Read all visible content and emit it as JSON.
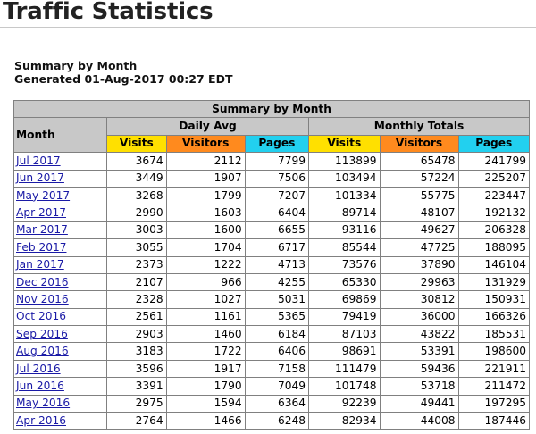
{
  "page_title": "Traffic Statistics",
  "summary": {
    "heading": "Summary by Month",
    "generated": "Generated 01-Aug-2017 00:27 EDT"
  },
  "table": {
    "caption": "Summary by Month",
    "month_header": "Month",
    "daily_avg_header": "Daily Avg",
    "monthly_totals_header": "Monthly Totals",
    "col_visits": "Visits",
    "col_visitors": "Visitors",
    "col_pages": "Pages",
    "rows": [
      {
        "month": "Jul 2017",
        "d_visits": "3674",
        "d_visitors": "2112",
        "d_pages": "7799",
        "m_visits": "113899",
        "m_visitors": "65478",
        "m_pages": "241799"
      },
      {
        "month": "Jun 2017",
        "d_visits": "3449",
        "d_visitors": "1907",
        "d_pages": "7506",
        "m_visits": "103494",
        "m_visitors": "57224",
        "m_pages": "225207"
      },
      {
        "month": "May 2017",
        "d_visits": "3268",
        "d_visitors": "1799",
        "d_pages": "7207",
        "m_visits": "101334",
        "m_visitors": "55775",
        "m_pages": "223447"
      },
      {
        "month": "Apr 2017",
        "d_visits": "2990",
        "d_visitors": "1603",
        "d_pages": "6404",
        "m_visits": "89714",
        "m_visitors": "48107",
        "m_pages": "192132"
      },
      {
        "month": "Mar 2017",
        "d_visits": "3003",
        "d_visitors": "1600",
        "d_pages": "6655",
        "m_visits": "93116",
        "m_visitors": "49627",
        "m_pages": "206328"
      },
      {
        "month": "Feb 2017",
        "d_visits": "3055",
        "d_visitors": "1704",
        "d_pages": "6717",
        "m_visits": "85544",
        "m_visitors": "47725",
        "m_pages": "188095"
      },
      {
        "month": "Jan 2017",
        "d_visits": "2373",
        "d_visitors": "1222",
        "d_pages": "4713",
        "m_visits": "73576",
        "m_visitors": "37890",
        "m_pages": "146104"
      },
      {
        "month": "Dec 2016",
        "d_visits": "2107",
        "d_visitors": "966",
        "d_pages": "4255",
        "m_visits": "65330",
        "m_visitors": "29963",
        "m_pages": "131929"
      },
      {
        "month": "Nov 2016",
        "d_visits": "2328",
        "d_visitors": "1027",
        "d_pages": "5031",
        "m_visits": "69869",
        "m_visitors": "30812",
        "m_pages": "150931"
      },
      {
        "month": "Oct 2016",
        "d_visits": "2561",
        "d_visitors": "1161",
        "d_pages": "5365",
        "m_visits": "79419",
        "m_visitors": "36000",
        "m_pages": "166326"
      },
      {
        "month": "Sep 2016",
        "d_visits": "2903",
        "d_visitors": "1460",
        "d_pages": "6184",
        "m_visits": "87103",
        "m_visitors": "43822",
        "m_pages": "185531"
      },
      {
        "month": "Aug 2016",
        "d_visits": "3183",
        "d_visitors": "1722",
        "d_pages": "6406",
        "m_visits": "98691",
        "m_visitors": "53391",
        "m_pages": "198600"
      },
      {
        "month": "Jul 2016",
        "d_visits": "3596",
        "d_visitors": "1917",
        "d_pages": "7158",
        "m_visits": "111479",
        "m_visitors": "59436",
        "m_pages": "221911"
      },
      {
        "month": "Jun 2016",
        "d_visits": "3391",
        "d_visitors": "1790",
        "d_pages": "7049",
        "m_visits": "101748",
        "m_visitors": "53718",
        "m_pages": "211472"
      },
      {
        "month": "May 2016",
        "d_visits": "2975",
        "d_visitors": "1594",
        "d_pages": "6364",
        "m_visits": "92239",
        "m_visitors": "49441",
        "m_pages": "197295"
      },
      {
        "month": "Apr 2016",
        "d_visits": "2764",
        "d_visitors": "1466",
        "d_pages": "6248",
        "m_visits": "82934",
        "m_visitors": "44008",
        "m_pages": "187446"
      }
    ]
  },
  "colors": {
    "header_gray": "#c8c8c8",
    "visits_yellow": "#ffe000",
    "visitors_orange": "#ff8a1e",
    "pages_cyan": "#22d0ef",
    "link_blue": "#1a1aa6"
  }
}
